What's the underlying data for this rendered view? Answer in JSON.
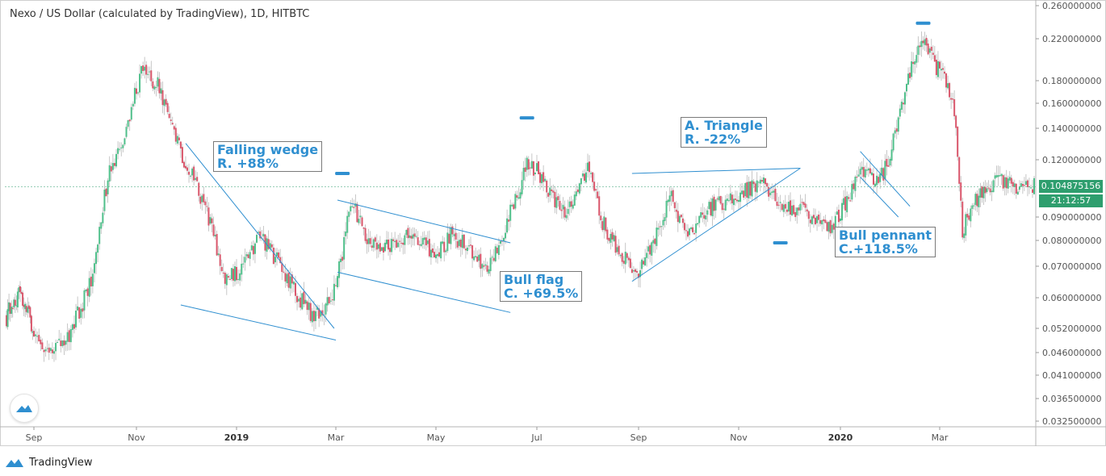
{
  "chart_title": "Nexo / US Dollar (calculated by TradingView), 1D, HITBTC",
  "brand_label": "TradingView",
  "current_price": "0.104875156",
  "countdown": "21:12:57",
  "colors": {
    "up": "#4fbf8a",
    "down": "#d9566b",
    "annotation": "#2f8fd0",
    "pattern_line": "#2f8fd0",
    "price_tag": "#2e9e6e",
    "marker": "#2f8fd0"
  },
  "annotations": [
    {
      "id": "falling-wedge",
      "line1": "Falling wedge",
      "line2": "R. +88%"
    },
    {
      "id": "bull-flag",
      "line1": "Bull flag",
      "line2": "C. +69.5%"
    },
    {
      "id": "a-triangle",
      "line1": "A. Triangle",
      "line2": "R. -22%"
    },
    {
      "id": "bull-pennant",
      "line1": "Bull pennant",
      "line2": "C.+118.5%"
    }
  ],
  "chart_data": {
    "type": "candlestick",
    "title": "Nexo / US Dollar (calculated by TradingView), 1D, HITBTC",
    "y_scale": "log",
    "ylim": [
      0.0325,
      0.26
    ],
    "y_ticks": [
      "0.260000000",
      "0.220000000",
      "0.180000000",
      "0.160000000",
      "0.140000000",
      "0.120000000",
      "0.090000000",
      "0.080000000",
      "0.070000000",
      "0.060000000",
      "0.052000000",
      "0.046000000",
      "0.041000000",
      "0.036500000",
      "0.032500000"
    ],
    "x_ticks": [
      {
        "label": "Sep",
        "bold": false
      },
      {
        "label": "Nov",
        "bold": false
      },
      {
        "label": "2019",
        "bold": true
      },
      {
        "label": "Mar",
        "bold": false
      },
      {
        "label": "May",
        "bold": false
      },
      {
        "label": "Jul",
        "bold": false
      },
      {
        "label": "Sep",
        "bold": false
      },
      {
        "label": "Nov",
        "bold": false
      },
      {
        "label": "2020",
        "bold": true
      },
      {
        "label": "Mar",
        "bold": false
      }
    ],
    "close_path": [
      [
        "2018-08-10",
        0.055
      ],
      [
        "2018-08-20",
        0.062
      ],
      [
        "2018-09-01",
        0.052
      ],
      [
        "2018-09-05",
        0.047
      ],
      [
        "2018-09-20",
        0.048
      ],
      [
        "2018-10-05",
        0.065
      ],
      [
        "2018-10-15",
        0.11
      ],
      [
        "2018-10-25",
        0.13
      ],
      [
        "2018-10-30",
        0.165
      ],
      [
        "2018-11-05",
        0.19
      ],
      [
        "2018-11-15",
        0.175
      ],
      [
        "2018-11-22",
        0.14
      ],
      [
        "2018-12-05",
        0.11
      ],
      [
        "2018-12-15",
        0.09
      ],
      [
        "2018-12-25",
        0.065
      ],
      [
        "2019-01-05",
        0.07
      ],
      [
        "2019-01-15",
        0.082
      ],
      [
        "2019-01-25",
        0.072
      ],
      [
        "2019-02-05",
        0.062
      ],
      [
        "2019-02-15",
        0.055
      ],
      [
        "2019-02-25",
        0.058
      ],
      [
        "2019-03-05",
        0.075
      ],
      [
        "2019-03-10",
        0.098
      ],
      [
        "2019-03-20",
        0.08
      ],
      [
        "2019-04-01",
        0.078
      ],
      [
        "2019-04-15",
        0.083
      ],
      [
        "2019-05-01",
        0.074
      ],
      [
        "2019-05-10",
        0.082
      ],
      [
        "2019-05-20",
        0.078
      ],
      [
        "2019-06-01",
        0.068
      ],
      [
        "2019-06-10",
        0.082
      ],
      [
        "2019-06-20",
        0.104
      ],
      [
        "2019-06-25",
        0.118
      ],
      [
        "2019-06-30",
        0.115
      ],
      [
        "2019-07-10",
        0.1
      ],
      [
        "2019-07-20",
        0.092
      ],
      [
        "2019-08-01",
        0.115
      ],
      [
        "2019-08-10",
        0.088
      ],
      [
        "2019-08-20",
        0.075
      ],
      [
        "2019-09-01",
        0.067
      ],
      [
        "2019-09-10",
        0.08
      ],
      [
        "2019-09-20",
        0.1
      ],
      [
        "2019-10-01",
        0.083
      ],
      [
        "2019-10-15",
        0.095
      ],
      [
        "2019-11-01",
        0.1
      ],
      [
        "2019-11-15",
        0.108
      ],
      [
        "2019-11-25",
        0.095
      ],
      [
        "2019-12-10",
        0.093
      ],
      [
        "2019-12-25",
        0.085
      ],
      [
        "2020-01-05",
        0.098
      ],
      [
        "2020-01-15",
        0.115
      ],
      [
        "2020-01-22",
        0.105
      ],
      [
        "2020-01-30",
        0.118
      ],
      [
        "2020-02-05",
        0.15
      ],
      [
        "2020-02-12",
        0.19
      ],
      [
        "2020-02-18",
        0.22
      ],
      [
        "2020-02-25",
        0.2
      ],
      [
        "2020-03-05",
        0.18
      ],
      [
        "2020-03-10",
        0.155
      ],
      [
        "2020-03-15",
        0.085
      ],
      [
        "2020-03-25",
        0.1
      ],
      [
        "2020-04-05",
        0.11
      ],
      [
        "2020-04-15",
        0.105
      ],
      [
        "2020-04-25",
        0.105
      ]
    ],
    "patterns": [
      {
        "name": "Falling wedge",
        "lines": [
          [
            [
              "2018-12-01",
              0.13
            ],
            [
              "2019-02-28",
              0.052
            ]
          ],
          [
            [
              "2018-11-28",
              0.058
            ],
            [
              "2019-03-01",
              0.049
            ]
          ]
        ]
      },
      {
        "name": "Bull flag",
        "lines": [
          [
            [
              "2019-03-02",
              0.098
            ],
            [
              "2019-06-15",
              0.079
            ]
          ],
          [
            [
              "2019-03-02",
              0.068
            ],
            [
              "2019-06-15",
              0.056
            ]
          ]
        ]
      },
      {
        "name": "A. Triangle",
        "lines": [
          [
            [
              "2019-08-28",
              0.112
            ],
            [
              "2019-12-08",
              0.115
            ]
          ],
          [
            [
              "2019-08-28",
              0.065
            ],
            [
              "2019-12-08",
              0.115
            ]
          ]
        ]
      },
      {
        "name": "Bull pennant",
        "lines": [
          [
            [
              "2020-01-13",
              0.125
            ],
            [
              "2020-02-12",
              0.095
            ]
          ],
          [
            [
              "2020-01-13",
              0.11
            ],
            [
              "2020-02-05",
              0.09
            ]
          ]
        ]
      }
    ],
    "markers": [
      {
        "date": "2019-03-05",
        "price": 0.112
      },
      {
        "date": "2019-06-25",
        "price": 0.148
      },
      {
        "date": "2019-11-26",
        "price": 0.079
      },
      {
        "date": "2020-02-20",
        "price": 0.238
      }
    ]
  }
}
